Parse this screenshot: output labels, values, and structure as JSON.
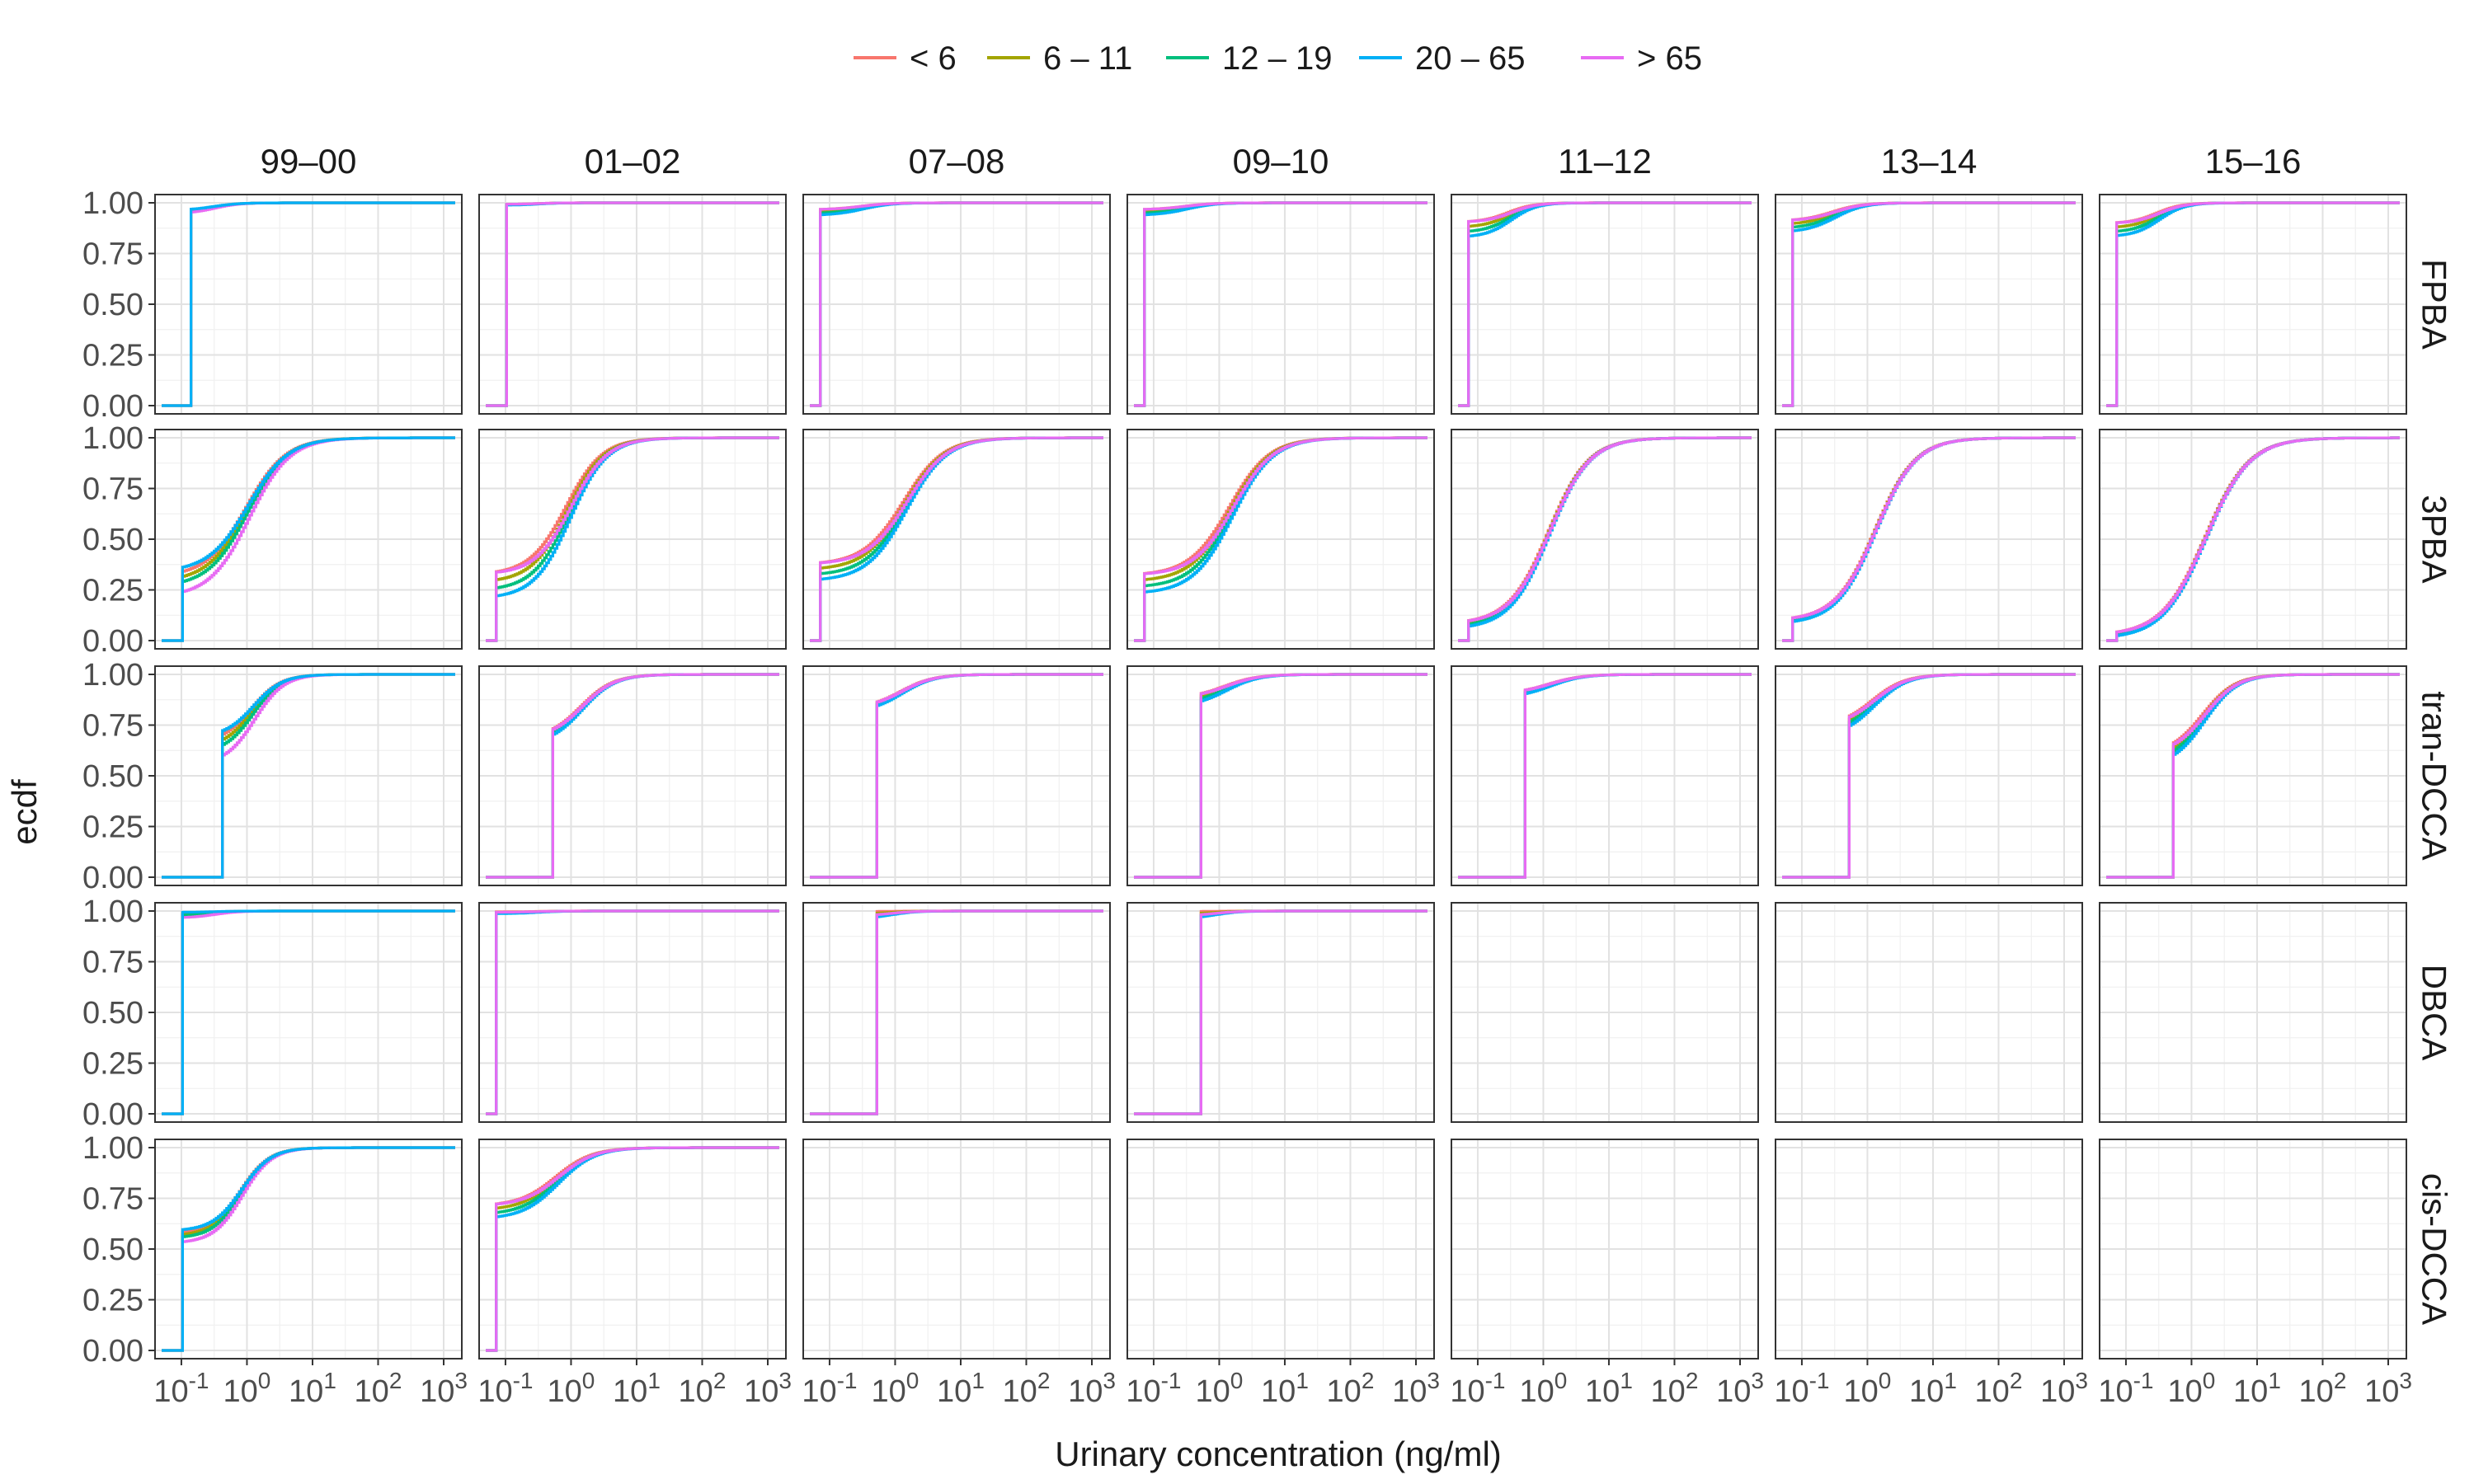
{
  "chart_data": {
    "type": "line",
    "subtype": "step ecdf facet grid",
    "xlabel": "Urinary concentration (ng/ml)",
    "ylabel": "ecdf",
    "x_scale": "log10",
    "xlim": [
      0.05,
      1500
    ],
    "ylim": [
      0,
      1
    ],
    "x_ticks": [
      {
        "base": "10",
        "exp": "-1"
      },
      {
        "base": "10",
        "exp": "0"
      },
      {
        "base": "10",
        "exp": "1"
      },
      {
        "base": "10",
        "exp": "2"
      },
      {
        "base": "10",
        "exp": "3"
      }
    ],
    "y_ticks": [
      "0.00",
      "0.25",
      "0.50",
      "0.75",
      "1.00"
    ],
    "grid": true,
    "legend": {
      "position": "top",
      "items": [
        {
          "label": "< 6",
          "color": "#F8766D"
        },
        {
          "label": "6 – 11",
          "color": "#A3A500"
        },
        {
          "label": "12 – 19",
          "color": "#00BF7D"
        },
        {
          "label": "20 – 65",
          "color": "#00B0F6"
        },
        {
          "label": "> 65",
          "color": "#E76BF3"
        }
      ]
    },
    "columns": [
      "99–00",
      "01–02",
      "07–08",
      "09–10",
      "11–12",
      "13–14",
      "15–16"
    ],
    "rows": [
      "FPBA",
      "3PBA",
      "tran-DCCA",
      "DBCA",
      "cis-DCCA"
    ],
    "panels": [
      {
        "row": "FPBA",
        "col": "99–00",
        "lod": 0.14,
        "jump": 0.96,
        "spread": 0.01,
        "mid": 0.3,
        "scale": 0.35,
        "top": "20 – 65"
      },
      {
        "row": "FPBA",
        "col": "01–02",
        "lod": 0.1,
        "jump": 0.99,
        "spread": 0.005,
        "mid": 0.3,
        "scale": 0.3,
        "top": "> 65"
      },
      {
        "row": "FPBA",
        "col": "07–08",
        "lod": 0.07,
        "jump": 0.95,
        "spread": 0.03,
        "mid": 0.3,
        "scale": 0.4,
        "top": "> 65"
      },
      {
        "row": "FPBA",
        "col": "09–10",
        "lod": 0.07,
        "jump": 0.95,
        "spread": 0.03,
        "mid": 0.3,
        "scale": 0.4,
        "top": "> 65"
      },
      {
        "row": "FPBA",
        "col": "11–12",
        "lod": 0.07,
        "jump": 0.86,
        "spread": 0.08,
        "mid": 0.3,
        "scale": 0.35,
        "top": "> 65"
      },
      {
        "row": "FPBA",
        "col": "13–14",
        "lod": 0.07,
        "jump": 0.88,
        "spread": 0.06,
        "mid": 0.3,
        "scale": 0.4,
        "top": "> 65"
      },
      {
        "row": "FPBA",
        "col": "15–16",
        "lod": 0.07,
        "jump": 0.86,
        "spread": 0.07,
        "mid": 0.3,
        "scale": 0.35,
        "top": "> 65"
      },
      {
        "row": "3PBA",
        "col": "99–00",
        "lod": 0.1,
        "jump": 0.29,
        "spread": 0.08,
        "mid": 1.0,
        "scale": 0.55,
        "top": "20 – 65"
      },
      {
        "row": "3PBA",
        "col": "01–02",
        "lod": 0.07,
        "jump": 0.26,
        "spread": 0.13,
        "mid": 0.9,
        "scale": 0.5,
        "top": "> 65"
      },
      {
        "row": "3PBA",
        "col": "07–08",
        "lod": 0.07,
        "jump": 0.33,
        "spread": 0.09,
        "mid": 1.4,
        "scale": 0.55,
        "top": "> 65"
      },
      {
        "row": "3PBA",
        "col": "09–10",
        "lod": 0.07,
        "jump": 0.27,
        "spread": 0.1,
        "mid": 1.5,
        "scale": 0.55,
        "top": "> 65"
      },
      {
        "row": "3PBA",
        "col": "11–12",
        "lod": 0.07,
        "jump": 0.08,
        "spread": 0.03,
        "mid": 1.2,
        "scale": 0.55,
        "top": "> 65"
      },
      {
        "row": "3PBA",
        "col": "13–14",
        "lod": 0.07,
        "jump": 0.1,
        "spread": 0.02,
        "mid": 1.3,
        "scale": 0.55,
        "top": "> 65"
      },
      {
        "row": "3PBA",
        "col": "15–16",
        "lod": 0.07,
        "jump": 0.03,
        "spread": 0.02,
        "mid": 1.6,
        "scale": 0.6,
        "top": "> 65"
      },
      {
        "row": "tran-DCCA",
        "col": "99–00",
        "lod": 0.4,
        "jump": 0.65,
        "spread": 0.08,
        "mid": 1.2,
        "scale": 0.4,
        "top": "20 – 65"
      },
      {
        "row": "tran-DCCA",
        "col": "01–02",
        "lod": 0.5,
        "jump": 0.71,
        "spread": 0.03,
        "mid": 1.4,
        "scale": 0.45,
        "top": "> 65"
      },
      {
        "row": "tran-DCCA",
        "col": "07–08",
        "lod": 0.5,
        "jump": 0.85,
        "spread": 0.02,
        "mid": 1.2,
        "scale": 0.45,
        "top": "> 65"
      },
      {
        "row": "tran-DCCA",
        "col": "09–10",
        "lod": 0.5,
        "jump": 0.88,
        "spread": 0.04,
        "mid": 1.2,
        "scale": 0.45,
        "top": "> 65"
      },
      {
        "row": "tran-DCCA",
        "col": "11–12",
        "lod": 0.5,
        "jump": 0.91,
        "spread": 0.02,
        "mid": 1.2,
        "scale": 0.45,
        "top": "> 65"
      },
      {
        "row": "tran-DCCA",
        "col": "13–14",
        "lod": 0.5,
        "jump": 0.76,
        "spread": 0.05,
        "mid": 1.2,
        "scale": 0.45,
        "top": "> 65"
      },
      {
        "row": "tran-DCCA",
        "col": "15–16",
        "lod": 0.5,
        "jump": 0.62,
        "spread": 0.06,
        "mid": 1.5,
        "scale": 0.45,
        "top": "> 65"
      },
      {
        "row": "DBCA",
        "col": "99–00",
        "lod": 0.1,
        "jump": 0.98,
        "spread": 0.02,
        "mid": 0.3,
        "scale": 0.35,
        "top": "20 – 65"
      },
      {
        "row": "DBCA",
        "col": "01–02",
        "lod": 0.07,
        "jump": 0.99,
        "spread": 0.01,
        "mid": 0.3,
        "scale": 0.35,
        "top": "> 65"
      },
      {
        "row": "DBCA",
        "col": "07–08",
        "lod": 0.5,
        "jump": 0.98,
        "spread": 0.03,
        "mid": 0.8,
        "scale": 0.35,
        "top": "> 65"
      },
      {
        "row": "DBCA",
        "col": "09–10",
        "lod": 0.5,
        "jump": 0.98,
        "spread": 0.03,
        "mid": 0.8,
        "scale": 0.35,
        "top": "> 65"
      },
      {
        "row": "cis-DCCA",
        "col": "99–00",
        "lod": 0.1,
        "jump": 0.56,
        "spread": 0.04,
        "mid": 0.8,
        "scale": 0.4,
        "top": "20 – 65"
      },
      {
        "row": "cis-DCCA",
        "col": "01–02",
        "lod": 0.07,
        "jump": 0.68,
        "spread": 0.07,
        "mid": 0.6,
        "scale": 0.5,
        "top": "> 65"
      }
    ]
  }
}
